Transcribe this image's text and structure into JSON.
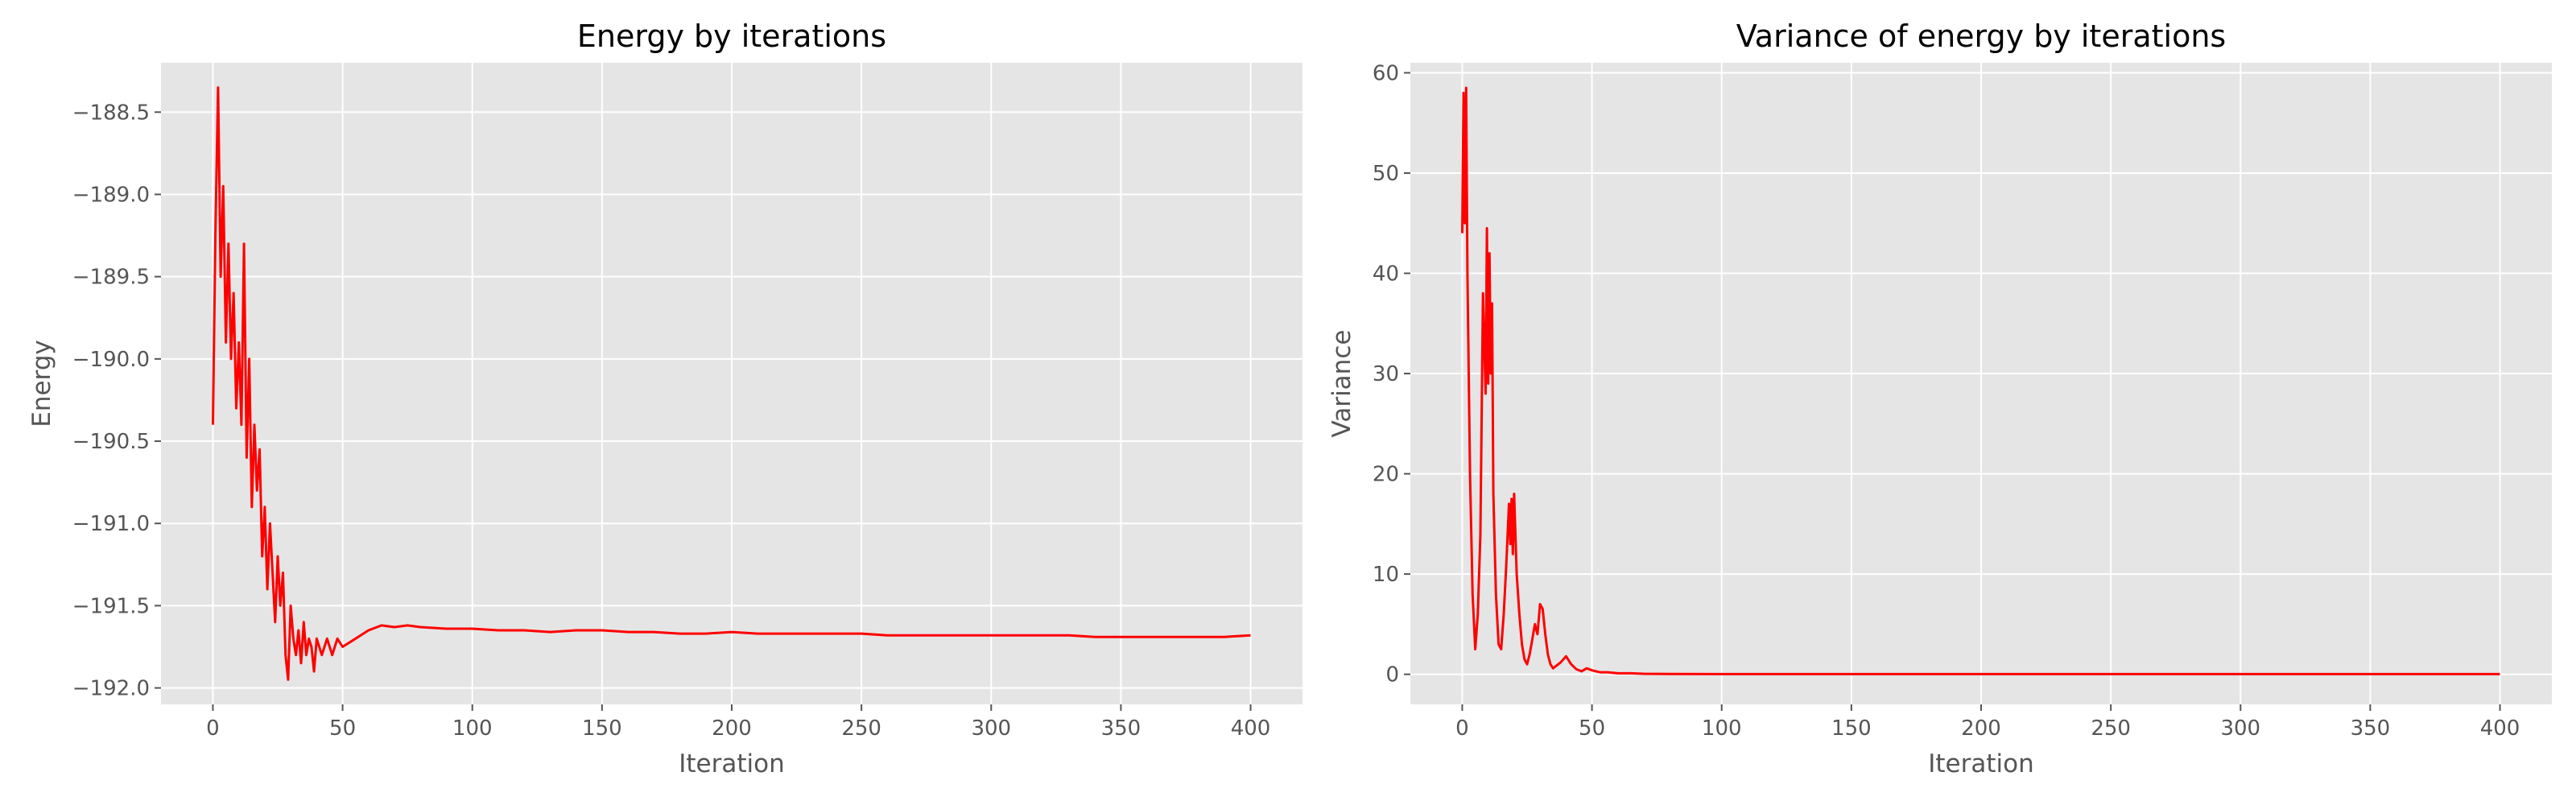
{
  "chart_data": [
    {
      "type": "line",
      "title": "Energy by iterations",
      "xlabel": "Iteration",
      "ylabel": "Energy",
      "xlim": [
        -20,
        420
      ],
      "ylim": [
        -192.1,
        -188.2
      ],
      "xticks": [
        0,
        50,
        100,
        150,
        200,
        250,
        300,
        350,
        400
      ],
      "xtick_labels": [
        "0",
        "50",
        "100",
        "150",
        "200",
        "250",
        "300",
        "350",
        "400"
      ],
      "yticks": [
        -192.0,
        -191.5,
        -191.0,
        -190.5,
        -190.0,
        -189.5,
        -189.0,
        -188.5
      ],
      "ytick_labels": [
        "−192.0",
        "−191.5",
        "−191.0",
        "−190.5",
        "−190.0",
        "−189.5",
        "−189.0",
        "−188.5"
      ],
      "grid": true,
      "color": "#ff0000",
      "series": [
        {
          "x": [
            0,
            1,
            2,
            3,
            4,
            5,
            6,
            7,
            8,
            9,
            10,
            11,
            12,
            13,
            14,
            15,
            16,
            17,
            18,
            19,
            20,
            21,
            22,
            23,
            24,
            25,
            26,
            27,
            28,
            29,
            30,
            31,
            32,
            33,
            34,
            35,
            36,
            37,
            38,
            39,
            40,
            42,
            44,
            46,
            48,
            50,
            55,
            60,
            65,
            70,
            75,
            80,
            90,
            100,
            110,
            120,
            130,
            140,
            150,
            160,
            170,
            180,
            190,
            200,
            210,
            220,
            230,
            240,
            250,
            260,
            270,
            280,
            290,
            300,
            310,
            320,
            330,
            340,
            350,
            360,
            370,
            380,
            390,
            400
          ],
          "values": [
            -190.4,
            -189.2,
            -188.35,
            -189.5,
            -188.95,
            -189.9,
            -189.3,
            -190.0,
            -189.6,
            -190.3,
            -189.9,
            -190.4,
            -189.3,
            -190.6,
            -190.0,
            -190.9,
            -190.4,
            -190.8,
            -190.55,
            -191.2,
            -190.9,
            -191.4,
            -191.0,
            -191.3,
            -191.6,
            -191.2,
            -191.5,
            -191.3,
            -191.8,
            -191.95,
            -191.5,
            -191.7,
            -191.8,
            -191.65,
            -191.85,
            -191.6,
            -191.8,
            -191.7,
            -191.75,
            -191.9,
            -191.7,
            -191.8,
            -191.7,
            -191.8,
            -191.7,
            -191.75,
            -191.7,
            -191.65,
            -191.62,
            -191.63,
            -191.62,
            -191.63,
            -191.64,
            -191.64,
            -191.65,
            -191.65,
            -191.66,
            -191.65,
            -191.65,
            -191.66,
            -191.66,
            -191.67,
            -191.67,
            -191.66,
            -191.67,
            -191.67,
            -191.67,
            -191.67,
            -191.67,
            -191.68,
            -191.68,
            -191.68,
            -191.68,
            -191.68,
            -191.68,
            -191.68,
            -191.68,
            -191.69,
            -191.69,
            -191.69,
            -191.69,
            -191.69,
            -191.69,
            -191.68
          ]
        }
      ]
    },
    {
      "type": "line",
      "title": "Variance of energy by iterations",
      "xlabel": "Iteration",
      "ylabel": "Variance",
      "xlim": [
        -20,
        420
      ],
      "ylim": [
        -3,
        61
      ],
      "xticks": [
        0,
        50,
        100,
        150,
        200,
        250,
        300,
        350,
        400
      ],
      "xtick_labels": [
        "0",
        "50",
        "100",
        "150",
        "200",
        "250",
        "300",
        "350",
        "400"
      ],
      "yticks": [
        0,
        10,
        20,
        30,
        40,
        50,
        60
      ],
      "ytick_labels": [
        "0",
        "10",
        "20",
        "30",
        "40",
        "50",
        "60"
      ],
      "grid": true,
      "color": "#ff0000",
      "series": [
        {
          "x": [
            0,
            0.5,
            1,
            1.5,
            2,
            3,
            4,
            5,
            6,
            7,
            8,
            9,
            9.5,
            10,
            10.5,
            11,
            11.5,
            12,
            13,
            14,
            15,
            16,
            17,
            18,
            18.5,
            19,
            19.5,
            20,
            21,
            22,
            23,
            24,
            25,
            26,
            27,
            28,
            29,
            30,
            31,
            32,
            33,
            34,
            35,
            36,
            38,
            40,
            42,
            44,
            46,
            48,
            50,
            53,
            56,
            60,
            65,
            70,
            80,
            100,
            150,
            200,
            250,
            300,
            350,
            400
          ],
          "values": [
            44.0,
            58.0,
            45.0,
            58.5,
            40.0,
            20.0,
            8.0,
            2.5,
            6.0,
            14.0,
            38.0,
            28.0,
            44.5,
            29.0,
            42.0,
            30.0,
            37.0,
            18.0,
            8.0,
            3.0,
            2.5,
            6.0,
            11.0,
            17.0,
            13.0,
            17.5,
            12.0,
            18.0,
            10.0,
            6.0,
            3.0,
            1.5,
            1.0,
            2.0,
            3.5,
            5.0,
            4.0,
            7.0,
            6.5,
            4.0,
            2.0,
            1.0,
            0.6,
            0.8,
            1.2,
            1.8,
            1.0,
            0.5,
            0.3,
            0.6,
            0.4,
            0.2,
            0.2,
            0.1,
            0.1,
            0.05,
            0.03,
            0.02,
            0.02,
            0.02,
            0.02,
            0.02,
            0.02,
            0.02
          ]
        }
      ]
    }
  ]
}
